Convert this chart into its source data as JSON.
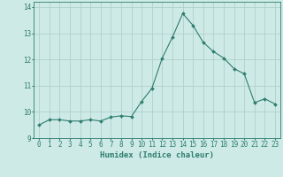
{
  "x": [
    0,
    1,
    2,
    3,
    4,
    5,
    6,
    7,
    8,
    9,
    10,
    11,
    12,
    13,
    14,
    15,
    16,
    17,
    18,
    19,
    20,
    21,
    22,
    23
  ],
  "y": [
    9.5,
    9.7,
    9.7,
    9.65,
    9.65,
    9.7,
    9.65,
    9.8,
    9.85,
    9.82,
    10.4,
    10.9,
    12.05,
    12.85,
    13.75,
    13.3,
    12.65,
    12.3,
    12.05,
    11.65,
    11.45,
    10.35,
    10.5,
    10.3
  ],
  "line_color": "#2e7d6e",
  "marker": "D",
  "marker_size": 2.0,
  "bg_color": "#ceeae7",
  "grid_color": "#b0d0cc",
  "xlabel": "Humidex (Indice chaleur)",
  "ylim": [
    9.0,
    14.2
  ],
  "xlim": [
    -0.5,
    23.5
  ],
  "yticks": [
    9,
    10,
    11,
    12,
    13,
    14
  ],
  "xticks": [
    0,
    1,
    2,
    3,
    4,
    5,
    6,
    7,
    8,
    9,
    10,
    11,
    12,
    13,
    14,
    15,
    16,
    17,
    18,
    19,
    20,
    21,
    22,
    23
  ],
  "tick_color": "#2e7d6e",
  "label_fontsize": 6.0,
  "tick_fontsize": 5.5
}
